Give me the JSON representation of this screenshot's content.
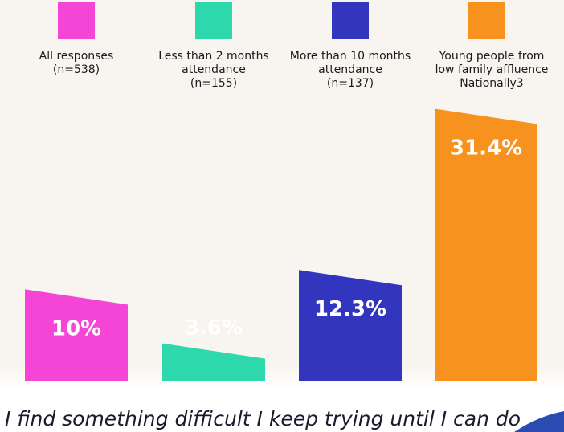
{
  "chart_data": {
    "type": "bar",
    "categories": [
      [
        "All responses",
        "(n=538)"
      ],
      [
        "Less than 2 months",
        "attendance",
        "(n=155)"
      ],
      [
        "More than 10 months",
        "attendance",
        "(n=137)"
      ],
      [
        "Young people from",
        "low family affluence",
        "Nationally3"
      ]
    ],
    "values": [
      10,
      3.6,
      12.3,
      31.4
    ],
    "value_labels": [
      "10%",
      "3.6%",
      "12.3%",
      "31.4%"
    ],
    "colors": [
      "#f545d6",
      "#2ed8ad",
      "#3236bf",
      "#f7921e"
    ],
    "caption": "I find something difficult I keep trying until I can do"
  }
}
